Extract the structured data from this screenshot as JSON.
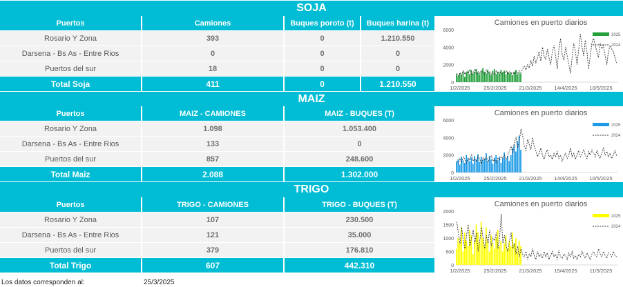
{
  "soja": {
    "title": "SOJA",
    "headers": [
      "Puertos",
      "Camiones",
      "Buques poroto (t)",
      "Buques harina (t)"
    ],
    "rows": [
      [
        "Rosario Y Zona",
        "393",
        "0",
        "1.210.550"
      ],
      [
        "Darsena - Bs As - Entre Rios",
        "0",
        "0",
        "0"
      ],
      [
        "Puertos del sur",
        "18",
        "0",
        "0"
      ]
    ],
    "total": [
      "Total Soja",
      "411",
      "0",
      "1.210.550"
    ]
  },
  "maiz": {
    "title": "MAIZ",
    "headers": [
      "Puertos",
      "MAIZ - CAMIONES",
      "MAIZ - BUQUES (T)"
    ],
    "rows": [
      [
        "Rosario Y Zona",
        "1.098",
        "1.053.400"
      ],
      [
        "Darsena - Bs As - Entre Rios",
        "133",
        "0"
      ],
      [
        "Puertos del sur",
        "857",
        "248.600"
      ]
    ],
    "total": [
      "Total Maiz",
      "2.088",
      "1.302.000"
    ]
  },
  "trigo": {
    "title": "TRIGO",
    "headers": [
      "Puertos",
      "TRIGO - CAMIONES",
      "TRIGO - BUQUES (T)"
    ],
    "rows": [
      [
        "Rosario Y Zona",
        "107",
        "230.500"
      ],
      [
        "Darsena - Bs As - Entre Rios",
        "121",
        "35.000"
      ],
      [
        "Puertos del sur",
        "379",
        "176.810"
      ]
    ],
    "total": [
      "Total Trigo",
      "607",
      "442.310"
    ]
  },
  "footer": {
    "label": "Los datos corresponden al:",
    "date": "25/3/2025"
  },
  "chart_data": [
    {
      "type": "bar",
      "title": "Camiones en puerto diarios",
      "ylim": [
        0,
        6000
      ],
      "yticks": [
        "0",
        "2000",
        "4000",
        "6000"
      ],
      "xticks": [
        "1/2/2025",
        "25/2/2025",
        "21/3/2025",
        "14/4/2025",
        "10/5/2025"
      ],
      "legend_position": "top-right",
      "color_2025": "#22a03c",
      "color_2024": "#333333",
      "series": [
        {
          "name": "2025",
          "style": "bar",
          "values": [
            900,
            700,
            1000,
            800,
            1200,
            600,
            1100,
            1300,
            900,
            1400,
            1000,
            1200,
            1500,
            1100,
            900,
            1300,
            1600,
            1200,
            1000,
            1400,
            1100,
            800,
            1300,
            1500,
            900,
            1200,
            1000,
            1400,
            1100,
            1300,
            900,
            1200,
            1000,
            1100,
            800,
            1200,
            1400,
            900,
            1100,
            1000
          ]
        },
        {
          "name": "2024",
          "style": "dashed-line",
          "values": [
            1000,
            700,
            1100,
            800,
            1300,
            900,
            1200,
            1000,
            1400,
            800,
            1100,
            1500,
            900,
            1200,
            1000,
            1300,
            1100,
            900,
            1400,
            1000,
            1200,
            900,
            1100,
            800,
            1300,
            1000,
            1200,
            900,
            1100,
            1000,
            1300,
            900,
            1200,
            1000,
            1100,
            900,
            1200,
            1000,
            1300,
            1100,
            1500,
            1800,
            1400,
            2000,
            1600,
            2500,
            1800,
            3000,
            2200,
            2800,
            3500,
            2400,
            4000,
            3000,
            2600,
            3800,
            2800,
            2000,
            3500,
            4200,
            3000,
            1500,
            3800,
            5000,
            3200,
            2500,
            4000,
            3000,
            2000,
            1000,
            2800,
            4500,
            3500,
            2000,
            3800,
            5500,
            4000,
            3000,
            4800,
            3500,
            1500,
            3000,
            4500,
            5000,
            4200,
            3500,
            2800,
            4500,
            3800,
            4200,
            3000,
            2000,
            3500,
            4200,
            3800,
            3500,
            2800,
            2200
          ]
        }
      ]
    },
    {
      "type": "bar",
      "title": "Camiones en puerto diarios",
      "ylim": [
        0,
        6000
      ],
      "yticks": [
        "0",
        "2000",
        "4000",
        "6000"
      ],
      "xticks": [
        "1/2/2025",
        "25/2/2025",
        "21/3/2025",
        "14/4/2025",
        "10/5/2025"
      ],
      "legend_position": "top-right",
      "color_2025": "#1e9be6",
      "color_2024": "#333333",
      "series": [
        {
          "name": "2025",
          "style": "bar",
          "values": [
            1200,
            1500,
            900,
            1800,
            1400,
            1100,
            2000,
            1600,
            1300,
            1700,
            1000,
            1900,
            1500,
            2100,
            1200,
            1800,
            1400,
            1600,
            2200,
            1300,
            1900,
            1500,
            1000,
            1700,
            2000,
            1400,
            1800,
            1100,
            1600,
            2300,
            1500,
            1900,
            1300,
            2000,
            2800,
            3200,
            2400,
            3600,
            4200,
            2600
          ]
        },
        {
          "name": "2024",
          "style": "dashed-line",
          "values": [
            1300,
            1000,
            1600,
            1200,
            1800,
            1500,
            1100,
            1700,
            1400,
            2000,
            1300,
            1600,
            1200,
            1900,
            1500,
            1000,
            1700,
            1400,
            1800,
            1200,
            1600,
            1900,
            1300,
            1500,
            1100,
            1700,
            1400,
            1800,
            1600,
            2000,
            1500,
            1900,
            2500,
            3000,
            2200,
            3500,
            4000,
            2800,
            3600,
            5000,
            4200,
            3000,
            2500,
            3800,
            3200,
            2600,
            4000,
            3000,
            2500,
            1800,
            2200,
            2800,
            2000,
            1500,
            2200,
            2600,
            1800,
            2000,
            1500,
            2200,
            1800,
            2400,
            1600,
            2000,
            1300,
            1800,
            2200,
            1600,
            2000,
            2800,
            1800,
            2200,
            1500,
            2000,
            2500,
            1800,
            2200,
            2600,
            2000,
            1600,
            2400,
            2000,
            2600,
            2200,
            1800,
            2500,
            2000,
            1600,
            2200,
            2800,
            2000,
            2400,
            1800,
            2200,
            1600,
            2000,
            2500,
            1900
          ]
        }
      ]
    },
    {
      "type": "bar",
      "title": "Camiones en puerto diarios",
      "ylim": [
        0,
        2000
      ],
      "yticks": [
        "0",
        "500",
        "1000",
        "1500",
        "2000"
      ],
      "xticks": [
        "1/2/2025",
        "25/2/2025",
        "21/3/2025",
        "15/4/2025",
        "11/5/2025"
      ],
      "legend_position": "top-right",
      "color_2025": "#ffff00",
      "color_2024": "#333333",
      "series": [
        {
          "name": "2025",
          "style": "bar",
          "values": [
            600,
            1000,
            800,
            1400,
            500,
            1200,
            900,
            700,
            1300,
            1100,
            400,
            900,
            1500,
            1200,
            800,
            1600,
            1000,
            700,
            1400,
            900,
            500,
            1100,
            800,
            600,
            1000,
            1300,
            700,
            900,
            500,
            800,
            1100,
            600,
            900,
            700,
            1200,
            800,
            1000,
            500,
            900,
            700
          ]
        },
        {
          "name": "2024",
          "style": "dashed-line",
          "values": [
            1600,
            1200,
            800,
            1400,
            900,
            600,
            1100,
            1500,
            700,
            1000,
            1300,
            800,
            1200,
            500,
            900,
            1400,
            1000,
            600,
            1100,
            800,
            1300,
            700,
            1000,
            900,
            1200,
            600,
            1000,
            1900,
            800,
            1100,
            700,
            500,
            900,
            1200,
            600,
            800,
            400,
            700,
            300,
            600,
            400,
            300,
            500,
            200,
            400,
            300,
            600,
            350,
            200,
            500,
            300,
            400,
            250,
            500,
            300,
            450,
            200,
            350,
            500,
            300,
            400,
            200,
            550,
            300,
            250,
            400,
            350,
            200,
            450,
            300,
            500,
            250,
            350,
            200,
            400,
            300,
            500,
            350,
            250,
            450,
            300,
            200,
            400,
            500,
            350,
            300,
            600,
            400,
            300,
            500,
            350,
            250,
            450,
            400,
            300,
            500,
            350,
            300
          ]
        }
      ]
    }
  ]
}
